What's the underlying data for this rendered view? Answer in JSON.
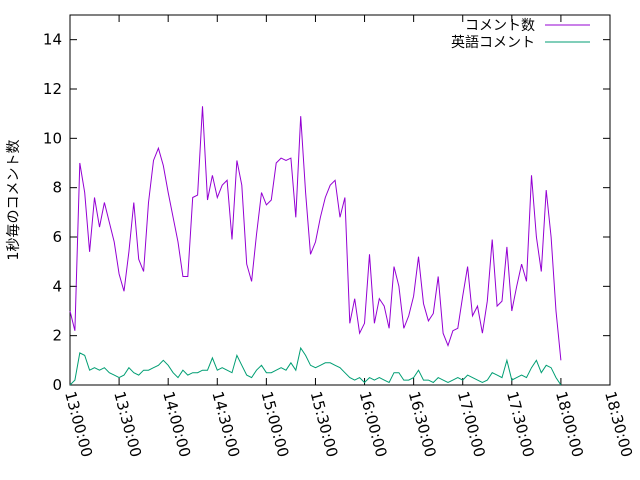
{
  "chart_data": {
    "type": "line",
    "title": "",
    "xlabel": "",
    "ylabel": "1秒毎のコメント数",
    "xlim": [
      "13:00:00",
      "18:30:00"
    ],
    "ylim": [
      0,
      15
    ],
    "x_ticks": [
      "13:00:00",
      "13:30:00",
      "14:00:00",
      "14:30:00",
      "15:00:00",
      "15:30:00",
      "16:00:00",
      "16:30:00",
      "17:00:00",
      "17:30:00",
      "18:00:00",
      "18:30:00"
    ],
    "y_ticks": [
      0,
      2,
      4,
      6,
      8,
      10,
      12,
      14
    ],
    "grid": false,
    "legend_position": "top-right",
    "series": [
      {
        "name": "コメント数",
        "color": "#9400d3",
        "x": [
          "13:00:00",
          "13:03:00",
          "13:06:00",
          "13:09:00",
          "13:12:00",
          "13:15:00",
          "13:18:00",
          "13:21:00",
          "13:24:00",
          "13:27:00",
          "13:30:00",
          "13:33:00",
          "13:36:00",
          "13:39:00",
          "13:42:00",
          "13:45:00",
          "13:48:00",
          "13:51:00",
          "13:54:00",
          "13:57:00",
          "14:00:00",
          "14:03:00",
          "14:06:00",
          "14:09:00",
          "14:12:00",
          "14:15:00",
          "14:18:00",
          "14:21:00",
          "14:24:00",
          "14:27:00",
          "14:30:00",
          "14:33:00",
          "14:36:00",
          "14:39:00",
          "14:42:00",
          "14:45:00",
          "14:48:00",
          "14:51:00",
          "14:54:00",
          "14:57:00",
          "15:00:00",
          "15:03:00",
          "15:06:00",
          "15:09:00",
          "15:12:00",
          "15:15:00",
          "15:18:00",
          "15:21:00",
          "15:24:00",
          "15:27:00",
          "15:30:00",
          "15:33:00",
          "15:36:00",
          "15:39:00",
          "15:42:00",
          "15:45:00",
          "15:48:00",
          "15:51:00",
          "15:54:00",
          "15:57:00",
          "16:00:00",
          "16:03:00",
          "16:06:00",
          "16:09:00",
          "16:12:00",
          "16:15:00",
          "16:18:00",
          "16:21:00",
          "16:24:00",
          "16:27:00",
          "16:30:00",
          "16:33:00",
          "16:36:00",
          "16:39:00",
          "16:42:00",
          "16:45:00",
          "16:48:00",
          "16:51:00",
          "16:54:00",
          "16:57:00",
          "17:00:00",
          "17:03:00",
          "17:06:00",
          "17:09:00",
          "17:12:00",
          "17:15:00",
          "17:18:00",
          "17:21:00",
          "17:24:00",
          "17:27:00",
          "17:30:00",
          "17:33:00",
          "17:36:00",
          "17:39:00",
          "17:42:00",
          "17:45:00",
          "17:48:00",
          "17:51:00",
          "17:54:00",
          "17:57:00",
          "18:00:00"
        ],
        "values": [
          3.0,
          2.2,
          9.0,
          7.8,
          5.4,
          7.6,
          6.4,
          7.4,
          6.6,
          5.8,
          4.5,
          3.8,
          5.4,
          7.4,
          5.1,
          4.6,
          7.4,
          9.1,
          9.6,
          8.9,
          7.8,
          6.8,
          5.8,
          4.4,
          4.4,
          7.6,
          7.7,
          11.3,
          7.5,
          8.5,
          7.6,
          8.1,
          8.3,
          5.9,
          9.1,
          8.1,
          4.9,
          4.2,
          6.1,
          7.8,
          7.3,
          7.5,
          9.0,
          9.2,
          9.1,
          9.2,
          6.8,
          10.9,
          7.8,
          5.3,
          5.8,
          6.8,
          7.6,
          8.1,
          8.3,
          6.8,
          7.6,
          2.5,
          3.5,
          2.1,
          2.5,
          5.3,
          2.5,
          3.5,
          3.2,
          2.3,
          4.8,
          4.0,
          2.3,
          2.8,
          3.6,
          5.2,
          3.3,
          2.6,
          2.9,
          4.4,
          2.1,
          1.6,
          2.2,
          2.3,
          3.6,
          4.8,
          2.8,
          3.2,
          2.1,
          3.4,
          5.9,
          3.2,
          3.4,
          5.6,
          3.0,
          4.0,
          4.9,
          4.2,
          8.5,
          6.0,
          4.6,
          7.9,
          6.0,
          3.0,
          1.0
        ]
      },
      {
        "name": "英語コメント",
        "color": "#009e73",
        "x": [
          "13:00:00",
          "13:03:00",
          "13:06:00",
          "13:09:00",
          "13:12:00",
          "13:15:00",
          "13:18:00",
          "13:21:00",
          "13:24:00",
          "13:27:00",
          "13:30:00",
          "13:33:00",
          "13:36:00",
          "13:39:00",
          "13:42:00",
          "13:45:00",
          "13:48:00",
          "13:51:00",
          "13:54:00",
          "13:57:00",
          "14:00:00",
          "14:03:00",
          "14:06:00",
          "14:09:00",
          "14:12:00",
          "14:15:00",
          "14:18:00",
          "14:21:00",
          "14:24:00",
          "14:27:00",
          "14:30:00",
          "14:33:00",
          "14:36:00",
          "14:39:00",
          "14:42:00",
          "14:45:00",
          "14:48:00",
          "14:51:00",
          "14:54:00",
          "14:57:00",
          "15:00:00",
          "15:03:00",
          "15:06:00",
          "15:09:00",
          "15:12:00",
          "15:15:00",
          "15:18:00",
          "15:21:00",
          "15:24:00",
          "15:27:00",
          "15:30:00",
          "15:33:00",
          "15:36:00",
          "15:39:00",
          "15:42:00",
          "15:45:00",
          "15:48:00",
          "15:51:00",
          "15:54:00",
          "15:57:00",
          "16:00:00",
          "16:03:00",
          "16:06:00",
          "16:09:00",
          "16:12:00",
          "16:15:00",
          "16:18:00",
          "16:21:00",
          "16:24:00",
          "16:27:00",
          "16:30:00",
          "16:33:00",
          "16:36:00",
          "16:39:00",
          "16:42:00",
          "16:45:00",
          "16:48:00",
          "16:51:00",
          "16:54:00",
          "16:57:00",
          "17:00:00",
          "17:03:00",
          "17:06:00",
          "17:09:00",
          "17:12:00",
          "17:15:00",
          "17:18:00",
          "17:21:00",
          "17:24:00",
          "17:27:00",
          "17:30:00",
          "17:33:00",
          "17:36:00",
          "17:39:00",
          "17:42:00",
          "17:45:00",
          "17:48:00",
          "17:51:00",
          "17:54:00",
          "17:57:00",
          "18:00:00"
        ],
        "values": [
          0.0,
          0.2,
          1.3,
          1.2,
          0.6,
          0.7,
          0.6,
          0.7,
          0.5,
          0.4,
          0.3,
          0.4,
          0.7,
          0.5,
          0.4,
          0.6,
          0.6,
          0.7,
          0.8,
          1.0,
          0.8,
          0.5,
          0.3,
          0.6,
          0.4,
          0.5,
          0.5,
          0.6,
          0.6,
          1.1,
          0.6,
          0.7,
          0.6,
          0.5,
          1.2,
          0.8,
          0.4,
          0.3,
          0.6,
          0.8,
          0.5,
          0.5,
          0.6,
          0.7,
          0.6,
          0.9,
          0.6,
          1.5,
          1.2,
          0.8,
          0.7,
          0.8,
          0.9,
          0.9,
          0.8,
          0.7,
          0.5,
          0.3,
          0.2,
          0.3,
          0.1,
          0.3,
          0.2,
          0.3,
          0.2,
          0.1,
          0.5,
          0.5,
          0.2,
          0.2,
          0.3,
          0.6,
          0.2,
          0.2,
          0.1,
          0.3,
          0.2,
          0.1,
          0.2,
          0.3,
          0.2,
          0.4,
          0.3,
          0.2,
          0.1,
          0.2,
          0.5,
          0.4,
          0.3,
          1.0,
          0.2,
          0.3,
          0.4,
          0.3,
          0.7,
          1.0,
          0.5,
          0.8,
          0.7,
          0.3,
          0.0
        ]
      }
    ]
  }
}
